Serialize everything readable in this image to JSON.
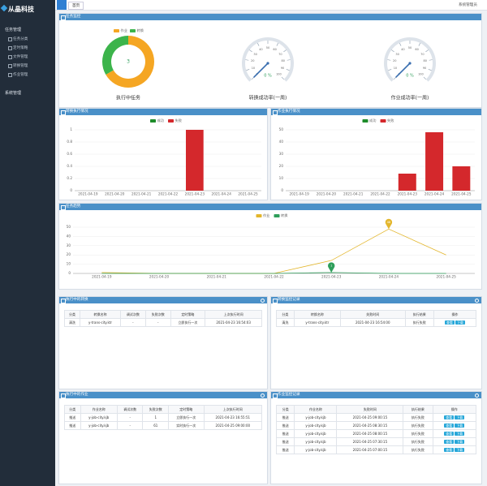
{
  "sidebar": {
    "logo": "从晶科技",
    "menu": [
      {
        "label": "任务管理",
        "children": [
          "任务分类",
          "定时策略",
          "文件管理",
          "转换管理",
          "作业管理"
        ]
      },
      {
        "label": "系统管理"
      }
    ]
  },
  "topbar": {
    "tab": "首页",
    "user": "系统管理员"
  },
  "monitor_title": "任务监控",
  "chart_data": [
    {
      "type": "pie",
      "title": "执行中任务",
      "categories": [
        "作业",
        "转换"
      ],
      "values": [
        2,
        1
      ],
      "colors": [
        "#f5a623",
        "#3cb44b"
      ],
      "total": 3
    },
    {
      "type": "gauge",
      "title": "转换成功率(一周)",
      "values": [
        0
      ],
      "value_labels": [
        "0 %"
      ],
      "ylim": [
        0,
        100
      ],
      "yticks": [
        0,
        10,
        20,
        30,
        40,
        50,
        60,
        70,
        80,
        90,
        100
      ],
      "color": "#3a6fb0"
    },
    {
      "type": "gauge",
      "title": "作业成功率(一周)",
      "values": [
        0
      ],
      "value_labels": [
        "0 %"
      ],
      "ylim": [
        0,
        100
      ],
      "yticks": [
        0,
        10,
        20,
        30,
        40,
        50,
        60,
        70,
        80,
        90,
        100
      ],
      "color": "#3a6fb0"
    },
    {
      "type": "bar",
      "title": "转换执行情况",
      "categories": [
        "2021-04-19",
        "2021-04-20",
        "2021-04-21",
        "2021-04-22",
        "2021-04-23",
        "2021-04-24",
        "2021-04-25"
      ],
      "series": [
        {
          "name": "成功",
          "color": "#1e8c2a",
          "values": [
            0,
            0,
            0,
            0,
            0,
            0,
            0
          ]
        },
        {
          "name": "失败",
          "color": "#d4282c",
          "values": [
            0,
            0,
            0,
            0,
            1,
            0,
            0
          ]
        }
      ],
      "ylim": [
        0,
        1
      ],
      "yticks": [
        0,
        0.2,
        0.4,
        0.6,
        0.8,
        1
      ],
      "grid": true
    },
    {
      "type": "bar",
      "title": "作业执行情况",
      "categories": [
        "2021-04-19",
        "2021-04-20",
        "2021-04-21",
        "2021-04-22",
        "2021-04-23",
        "2021-04-24",
        "2021-04-25"
      ],
      "series": [
        {
          "name": "成功",
          "color": "#1e8c2a",
          "values": [
            0,
            0,
            0,
            0,
            0,
            0,
            0
          ]
        },
        {
          "name": "失败",
          "color": "#d4282c",
          "values": [
            0,
            0,
            0,
            0,
            14,
            48,
            20
          ]
        }
      ],
      "ylim": [
        0,
        50
      ],
      "yticks": [
        0,
        10,
        20,
        30,
        40,
        50
      ],
      "grid": true
    },
    {
      "type": "line",
      "title": "任务趋势",
      "categories": [
        "2021-04-19",
        "2021-04-20",
        "2021-04-21",
        "2021-04-22",
        "2021-04-23",
        "2021-04-24",
        "2021-04-25"
      ],
      "series": [
        {
          "name": "作业",
          "color": "#e3b62c",
          "values": [
            1,
            0,
            0,
            0,
            14,
            48,
            20
          ]
        },
        {
          "name": "转换",
          "color": "#2e9e5a",
          "values": [
            0,
            0,
            0,
            0,
            1,
            0,
            0
          ]
        }
      ],
      "ylim": [
        0,
        50
      ],
      "yticks": [
        0,
        10,
        20,
        30,
        40,
        50
      ],
      "grid": true
    }
  ],
  "tables": [
    {
      "title": "执行中的转换",
      "headers": [
        "分类",
        "转换名称",
        "调试次数",
        "失败次数",
        "定时策略",
        "上次执行时间"
      ],
      "rows": [
        [
          "清洗",
          "y-trans-city.ktr",
          "-",
          "-",
          "立即执行一次",
          "2021-04-23 16:54:03"
        ]
      ]
    },
    {
      "title": "转换监控记录",
      "headers": [
        "分类",
        "转换名称",
        "失败时间",
        "执行结果",
        "操作"
      ],
      "actions": [
        "查看",
        "下载"
      ],
      "rows": [
        [
          "清洗",
          "y-trans-city.ktr",
          "2021-04-23 16:54:00",
          "执行失败"
        ]
      ]
    },
    {
      "title": "执行中的作业",
      "headers": [
        "分类",
        "作业名称",
        "调试次数",
        "失败次数",
        "定时策略",
        "上次执行时间"
      ],
      "rows": [
        [
          "推送",
          "y-job-city.kjb",
          "-",
          "1",
          "立即执行一次",
          "2021-04-23 16:55:51"
        ],
        [
          "推送",
          "y-job-city.kjb",
          "-",
          "61",
          "实时执行一次",
          "2021-04-25 09:00:00"
        ]
      ]
    },
    {
      "title": "作业监控记录",
      "headers": [
        "分类",
        "作业名称",
        "失败时间",
        "执行结果",
        "操作"
      ],
      "actions": [
        "查看",
        "下载"
      ],
      "rows": [
        [
          "推送",
          "y-job-city.kjb",
          "2021-04-25 09:00:15",
          "执行失败"
        ],
        [
          "推送",
          "y-job-city.kjb",
          "2021-04-25 08:30:15",
          "执行失败"
        ],
        [
          "推送",
          "y-job-city.kjb",
          "2021-04-25 08:00:15",
          "执行失败"
        ],
        [
          "推送",
          "y-job-city.kjb",
          "2021-04-25 07:30:15",
          "执行失败"
        ],
        [
          "推送",
          "y-job-city.kjb",
          "2021-04-25 07:00:15",
          "执行失败"
        ]
      ]
    }
  ]
}
